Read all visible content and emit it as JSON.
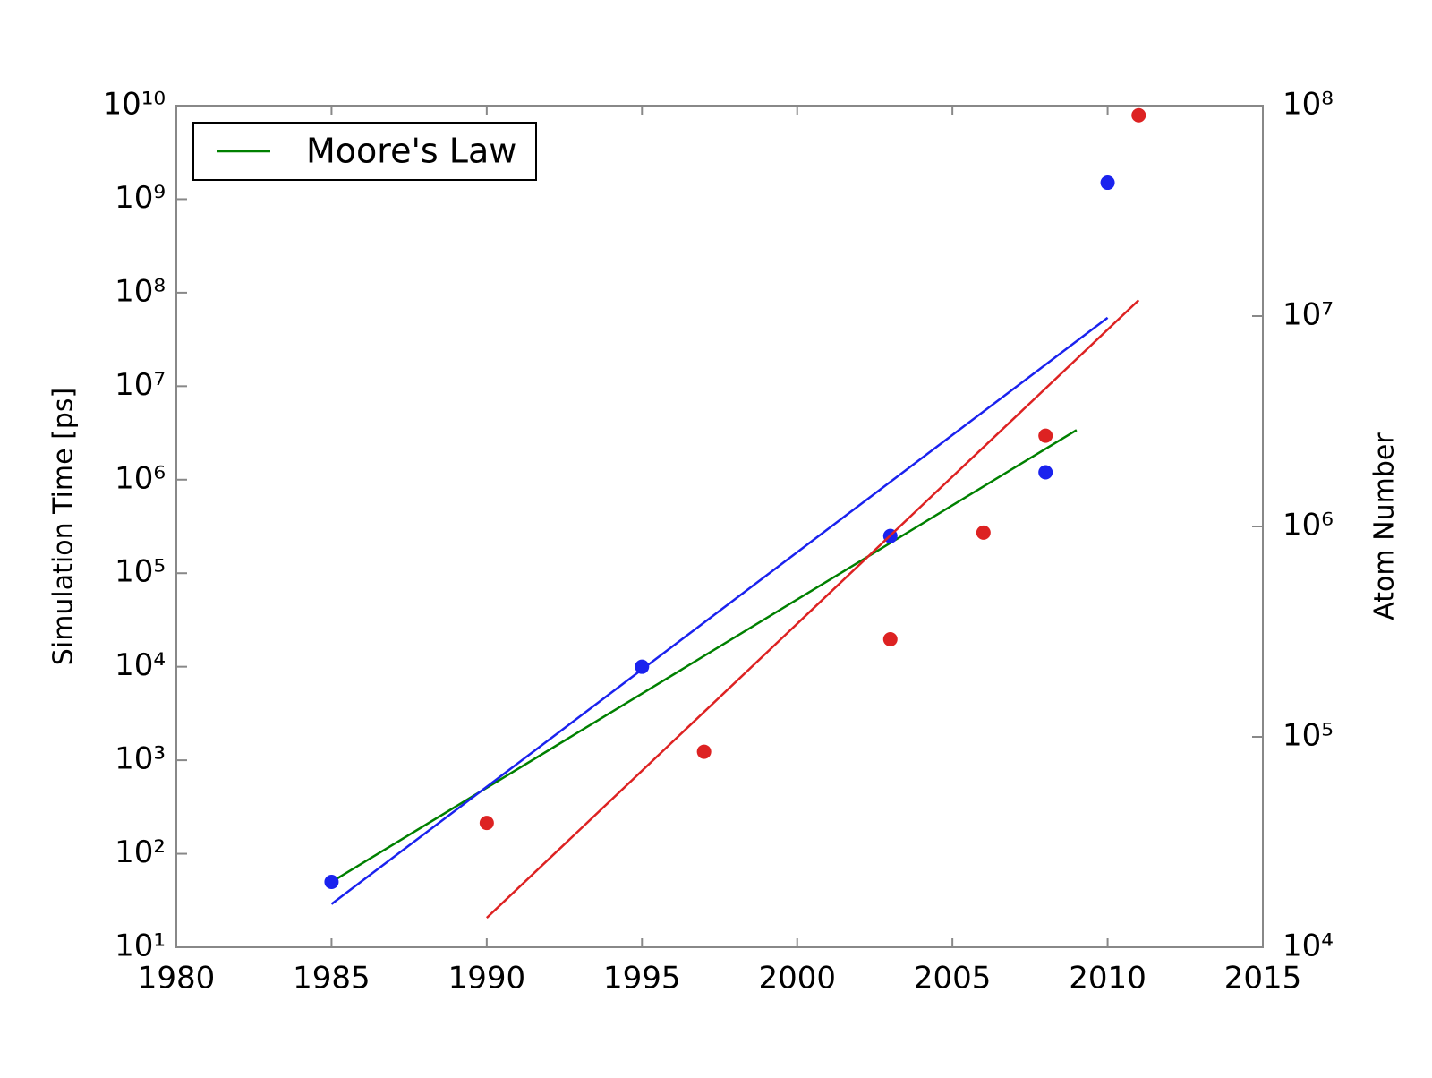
{
  "chart_data": {
    "type": "scatter",
    "xlabel": null,
    "ylabel": "Simulation Time [ps]",
    "y2label": "Atom Number",
    "xlim": [
      1980,
      2015
    ],
    "xticks": [
      1980,
      1985,
      1990,
      1995,
      2000,
      2005,
      2010,
      2015
    ],
    "ylim": [
      10,
      10000000000
    ],
    "yscale": "log",
    "yticks": [
      {
        "value": 10,
        "label": "10¹"
      },
      {
        "value": 100,
        "label": "10²"
      },
      {
        "value": 1000,
        "label": "10³"
      },
      {
        "value": 10000,
        "label": "10⁴"
      },
      {
        "value": 100000,
        "label": "10⁵"
      },
      {
        "value": 1000000,
        "label": "10⁶"
      },
      {
        "value": 10000000,
        "label": "10⁷"
      },
      {
        "value": 100000000,
        "label": "10⁸"
      },
      {
        "value": 1000000000,
        "label": "10⁹"
      },
      {
        "value": 10000000000,
        "label": "10¹⁰"
      }
    ],
    "y2lim": [
      10000,
      100000000
    ],
    "y2scale": "log",
    "y2ticks": [
      {
        "value": 10000,
        "label": "10⁴"
      },
      {
        "value": 100000,
        "label": "10⁵"
      },
      {
        "value": 1000000,
        "label": "10⁶"
      },
      {
        "value": 10000000,
        "label": "10⁷"
      },
      {
        "value": 100000000,
        "label": "10⁸"
      }
    ],
    "legend": "upper left",
    "series": [
      {
        "name": "Moore's Law",
        "color": "#008000",
        "mode": "line",
        "x": [
          1985,
          2009
        ],
        "values": [
          50,
          3400000
        ]
      },
      {
        "color": "#1a22ee",
        "mode": "markers",
        "x": [
          1985,
          1995,
          2003,
          2008,
          2010
        ],
        "values": [
          50,
          10000,
          250000,
          1200000,
          1500000000
        ]
      },
      {
        "color": "#1a22ee",
        "mode": "line",
        "x": [
          1985,
          2010
        ],
        "values": [
          29,
          54000000
        ]
      },
      {
        "color": "#dd2222",
        "mode": "markers",
        "axis": "y2",
        "x": [
          1990,
          1997,
          2003,
          2006,
          2008,
          2011
        ],
        "values": [
          39000,
          85000,
          291000,
          935000,
          2700000,
          90000000
        ]
      },
      {
        "color": "#dd2222",
        "mode": "line",
        "axis": "y2",
        "x": [
          1990,
          2011
        ],
        "values": [
          13800,
          11900000
        ]
      }
    ]
  }
}
